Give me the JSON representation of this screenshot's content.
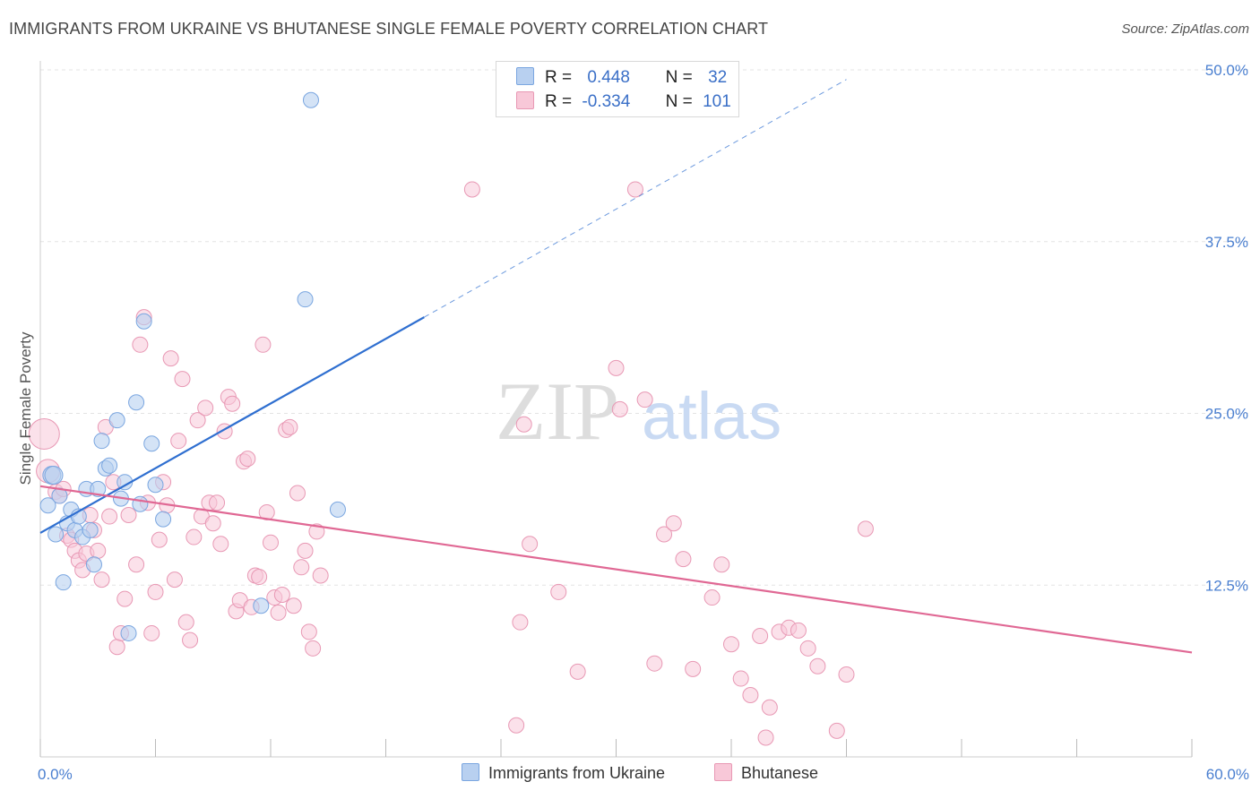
{
  "title": "IMMIGRANTS FROM UKRAINE VS BHUTANESE SINGLE FEMALE POVERTY CORRELATION CHART",
  "source": "Source: ZipAtlas.com",
  "watermark": {
    "zip": "ZIP",
    "atlas": "atlas"
  },
  "colors": {
    "ukraine_fill": "#b8d0f0",
    "ukraine_stroke": "#7aa6e0",
    "ukraine_line": "#2f6fd0",
    "bhutanese_fill": "#f8c8d8",
    "bhutanese_stroke": "#e898b4",
    "bhutanese_line": "#e06894",
    "grid": "#e4e4e4",
    "tick_label": "#4a7fd0"
  },
  "legend_top": {
    "rows": [
      {
        "r_label": "R =",
        "r_value": "0.448",
        "n_label": "N =",
        "n_value": "32"
      },
      {
        "r_label": "R =",
        "r_value": "-0.334",
        "n_label": "N =",
        "n_value": "101"
      }
    ]
  },
  "legend_bottom": {
    "items": [
      "Immigrants from Ukraine",
      "Bhutanese"
    ]
  },
  "chart_data": {
    "type": "scatter",
    "ylabel": "Single Female Poverty",
    "xlim": [
      0,
      60
    ],
    "ylim": [
      0,
      50
    ],
    "x_tick_labels": [
      "0.0%",
      "60.0%"
    ],
    "y_ticks": [
      12.5,
      25.0,
      37.5,
      50.0
    ],
    "y_tick_labels": [
      "12.5%",
      "25.0%",
      "37.5%",
      "50.0%"
    ],
    "grid": true,
    "series": [
      {
        "name": "Immigrants from Ukraine",
        "points": [
          [
            0.4,
            18.3
          ],
          [
            0.6,
            20.5
          ],
          [
            0.8,
            16.2
          ],
          [
            1.0,
            19.0
          ],
          [
            1.2,
            12.7
          ],
          [
            1.4,
            17.0
          ],
          [
            1.6,
            18.0
          ],
          [
            1.8,
            16.5
          ],
          [
            2.0,
            17.5
          ],
          [
            2.2,
            16.0
          ],
          [
            2.4,
            19.5
          ],
          [
            2.6,
            16.5
          ],
          [
            2.8,
            14.0
          ],
          [
            3.0,
            19.5
          ],
          [
            3.2,
            23.0
          ],
          [
            3.4,
            21.0
          ],
          [
            3.6,
            21.2
          ],
          [
            4.0,
            24.5
          ],
          [
            4.2,
            18.8
          ],
          [
            4.4,
            20.0
          ],
          [
            4.6,
            9.0
          ],
          [
            5.0,
            25.8
          ],
          [
            5.2,
            18.4
          ],
          [
            5.4,
            31.7
          ],
          [
            5.8,
            22.8
          ],
          [
            6.0,
            19.8
          ],
          [
            6.4,
            17.3
          ],
          [
            11.5,
            11.0
          ],
          [
            13.8,
            33.3
          ],
          [
            14.1,
            47.8
          ],
          [
            15.5,
            18.0
          ],
          [
            0.7,
            20.5
          ]
        ],
        "trend": {
          "x0": 0.0,
          "y0": 16.3,
          "x1": 20.0,
          "y1": 32.0,
          "dash_x1": 42.0,
          "dash_y1": 49.3
        }
      },
      {
        "name": "Bhutanese",
        "points": [
          [
            0.2,
            23.5
          ],
          [
            0.4,
            20.8
          ],
          [
            0.8,
            19.3
          ],
          [
            1.0,
            19.0
          ],
          [
            1.2,
            19.5
          ],
          [
            1.4,
            16.1
          ],
          [
            1.6,
            15.8
          ],
          [
            1.8,
            15.0
          ],
          [
            2.0,
            14.3
          ],
          [
            2.2,
            13.6
          ],
          [
            2.4,
            14.8
          ],
          [
            2.6,
            17.6
          ],
          [
            2.8,
            16.5
          ],
          [
            3.0,
            15.0
          ],
          [
            3.2,
            12.9
          ],
          [
            3.4,
            24.0
          ],
          [
            3.6,
            17.5
          ],
          [
            3.8,
            20.0
          ],
          [
            4.0,
            8.0
          ],
          [
            4.2,
            9.0
          ],
          [
            4.4,
            11.5
          ],
          [
            4.6,
            17.6
          ],
          [
            5.0,
            14.0
          ],
          [
            5.2,
            30.0
          ],
          [
            5.4,
            32.0
          ],
          [
            5.6,
            18.5
          ],
          [
            5.8,
            9.0
          ],
          [
            6.0,
            12.0
          ],
          [
            6.2,
            15.8
          ],
          [
            6.4,
            20.0
          ],
          [
            6.6,
            18.3
          ],
          [
            6.8,
            29.0
          ],
          [
            7.0,
            12.9
          ],
          [
            7.2,
            23.0
          ],
          [
            7.4,
            27.5
          ],
          [
            7.6,
            9.8
          ],
          [
            7.8,
            8.5
          ],
          [
            8.0,
            16.0
          ],
          [
            8.2,
            24.5
          ],
          [
            8.4,
            17.5
          ],
          [
            8.6,
            25.4
          ],
          [
            8.8,
            18.5
          ],
          [
            9.0,
            17.0
          ],
          [
            9.2,
            18.5
          ],
          [
            9.4,
            15.5
          ],
          [
            9.6,
            23.7
          ],
          [
            9.8,
            26.2
          ],
          [
            10.0,
            25.7
          ],
          [
            10.2,
            10.6
          ],
          [
            10.4,
            11.4
          ],
          [
            10.6,
            21.5
          ],
          [
            10.8,
            21.7
          ],
          [
            11.0,
            10.9
          ],
          [
            11.2,
            13.2
          ],
          [
            11.4,
            13.1
          ],
          [
            11.6,
            30.0
          ],
          [
            11.8,
            17.8
          ],
          [
            12.0,
            15.6
          ],
          [
            12.2,
            11.6
          ],
          [
            12.4,
            10.5
          ],
          [
            12.6,
            11.8
          ],
          [
            12.8,
            23.8
          ],
          [
            13.0,
            24.0
          ],
          [
            13.2,
            11.0
          ],
          [
            13.4,
            19.2
          ],
          [
            13.6,
            13.8
          ],
          [
            13.8,
            15.0
          ],
          [
            14.0,
            9.1
          ],
          [
            14.2,
            7.9
          ],
          [
            14.4,
            16.4
          ],
          [
            14.6,
            13.2
          ],
          [
            22.5,
            41.3
          ],
          [
            24.8,
            2.3
          ],
          [
            25.0,
            9.8
          ],
          [
            25.2,
            24.2
          ],
          [
            25.5,
            15.5
          ],
          [
            27.0,
            12.0
          ],
          [
            28.0,
            6.2
          ],
          [
            30.0,
            28.3
          ],
          [
            30.2,
            25.3
          ],
          [
            31.0,
            41.3
          ],
          [
            31.5,
            26.0
          ],
          [
            32.0,
            6.8
          ],
          [
            32.5,
            16.2
          ],
          [
            33.0,
            17.0
          ],
          [
            33.5,
            14.4
          ],
          [
            34.0,
            6.4
          ],
          [
            35.0,
            11.6
          ],
          [
            35.5,
            14.0
          ],
          [
            36.0,
            8.2
          ],
          [
            36.5,
            5.7
          ],
          [
            37.0,
            4.5
          ],
          [
            37.5,
            8.8
          ],
          [
            38.0,
            3.6
          ],
          [
            38.5,
            9.1
          ],
          [
            39.0,
            9.4
          ],
          [
            39.5,
            9.2
          ],
          [
            40.0,
            7.9
          ],
          [
            40.5,
            6.6
          ],
          [
            41.5,
            1.9
          ],
          [
            42.0,
            6.0
          ]
        ],
        "extra_points": [
          [
            43.0,
            16.6
          ],
          [
            37.8,
            1.4
          ]
        ],
        "trend": {
          "x0": 0.0,
          "y0": 19.7,
          "x1": 60.0,
          "y1": 7.6
        }
      }
    ]
  }
}
